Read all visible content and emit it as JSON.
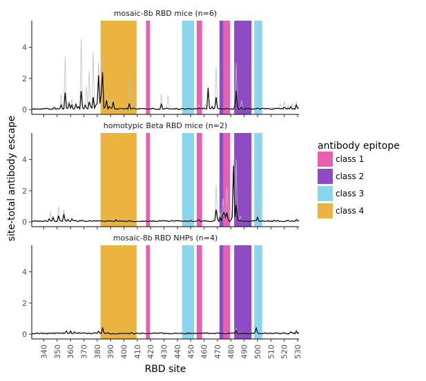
{
  "colors": {
    "class 1": "#e85fb3",
    "class 2": "#8e4bc4",
    "class 3": "#8ad6ef",
    "class 4": "#ebb440",
    "mean_line": "#000000",
    "individual_lines": "#bfbfbf"
  },
  "chart_data": {
    "type": "line",
    "facets": [
      "mosaic-8b RBD mice (n=6)",
      "homotypic Beta RBD mice (n=2)",
      "mosaic-8b RBD NHPs (n=4)"
    ],
    "xlabel": "RBD site",
    "ylabel": "site-total antibody escape",
    "xlim": [
      331,
      531
    ],
    "ylim": [
      -0.3,
      5.7
    ],
    "xticks": [
      340,
      350,
      360,
      370,
      380,
      390,
      400,
      410,
      420,
      430,
      440,
      450,
      460,
      470,
      480,
      490,
      500,
      510,
      520,
      530
    ],
    "yticks": [
      0,
      2,
      4
    ],
    "legend": {
      "title": "antibody epitope",
      "placement": "right",
      "entries": [
        "class 1",
        "class 2",
        "class 3",
        "class 4"
      ]
    },
    "epitope_bands": [
      {
        "class": "class 4",
        "start": 382.5,
        "end": 409.5
      },
      {
        "class": "class 1",
        "start": 416.5,
        "end": 419.5
      },
      {
        "class": "class 3",
        "start": 443.5,
        "end": 452.5
      },
      {
        "class": "class 1",
        "start": 454.5,
        "end": 458.5
      },
      {
        "class": "class 2",
        "start": 471.5,
        "end": 474.5
      },
      {
        "class": "class 1",
        "start": 474.5,
        "end": 479.5
      },
      {
        "class": "class 2",
        "start": 482.5,
        "end": 495.5
      },
      {
        "class": "class 3",
        "start": 497.5,
        "end": 503.5
      }
    ],
    "series": [
      {
        "facet": 0,
        "mean_peaks": [
          [
            342,
            0.1
          ],
          [
            345,
            0.02
          ],
          [
            348,
            0.15
          ],
          [
            351,
            0.05
          ],
          [
            353,
            0.3
          ],
          [
            354,
            0.05
          ],
          [
            356,
            1.1
          ],
          [
            357,
            0.1
          ],
          [
            359,
            0.4
          ],
          [
            360,
            0.1
          ],
          [
            361,
            0.3
          ],
          [
            362,
            0.05
          ],
          [
            364,
            0.35
          ],
          [
            365,
            0.1
          ],
          [
            366,
            0.2
          ],
          [
            367,
            0.05
          ],
          [
            368,
            1.2
          ],
          [
            369,
            0.15
          ],
          [
            370,
            0.05
          ],
          [
            371,
            0.3
          ],
          [
            372,
            0.1
          ],
          [
            374,
            0.5
          ],
          [
            375,
            0.2
          ],
          [
            376,
            0.1
          ],
          [
            377,
            0.8
          ],
          [
            378,
            0.1
          ],
          [
            379,
            0.3
          ],
          [
            380,
            0.4
          ],
          [
            381,
            2.2
          ],
          [
            382,
            0.4
          ],
          [
            383,
            1.0
          ],
          [
            384,
            2.4
          ],
          [
            385,
            0.1
          ],
          [
            386,
            0.15
          ],
          [
            387,
            0.6
          ],
          [
            388,
            0.05
          ],
          [
            389,
            0.2
          ],
          [
            390,
            0.1
          ],
          [
            391,
            0.1
          ],
          [
            392,
            0.5
          ],
          [
            393,
            0.05
          ],
          [
            396,
            0.05
          ],
          [
            402,
            0.1
          ],
          [
            404,
            0.4
          ],
          [
            405,
            0.05
          ],
          [
            407,
            0.1
          ],
          [
            422,
            0.08
          ],
          [
            428,
            0.35
          ],
          [
            429,
            0.05
          ],
          [
            432,
            0.1
          ],
          [
            435,
            0.05
          ],
          [
            452,
            0.05
          ],
          [
            456,
            0.1
          ],
          [
            460,
            0.1
          ],
          [
            461,
            0.05
          ],
          [
            463,
            1.4
          ],
          [
            464,
            0.1
          ],
          [
            466,
            0.2
          ],
          [
            468,
            0.1
          ],
          [
            469,
            0.8
          ],
          [
            470,
            0.1
          ],
          [
            473,
            0.05
          ],
          [
            483,
            0.2
          ],
          [
            484,
            1.2
          ],
          [
            485,
            0.2
          ],
          [
            488,
            0.15
          ],
          [
            490,
            0.02
          ],
          [
            494,
            0.05
          ],
          [
            500,
            0.1
          ],
          [
            520,
            0.15
          ],
          [
            523,
            0.1
          ],
          [
            525,
            0.2
          ],
          [
            529,
            0.3
          ],
          [
            531,
            0.1
          ]
        ],
        "ind_peaks": [
          [
            353,
            1.0
          ],
          [
            356,
            3.4
          ],
          [
            358,
            0.5
          ],
          [
            361,
            0.7
          ],
          [
            364,
            0.4
          ],
          [
            368,
            4.5
          ],
          [
            372,
            1.5
          ],
          [
            374,
            2.5
          ],
          [
            377,
            3.7
          ],
          [
            381,
            3.0
          ],
          [
            382,
            0.3
          ],
          [
            383,
            3.2
          ],
          [
            384,
            2.7
          ],
          [
            387,
            1.1
          ],
          [
            391,
            0.8
          ],
          [
            392,
            0.9
          ],
          [
            404,
            2.1
          ],
          [
            406,
            0.3
          ],
          [
            428,
            1.0
          ],
          [
            433,
            0.9
          ],
          [
            456,
            0.3
          ],
          [
            461,
            0.4
          ],
          [
            463,
            1.3
          ],
          [
            469,
            2.8
          ],
          [
            484,
            3.0
          ],
          [
            488,
            0.6
          ],
          [
            517,
            0.4
          ],
          [
            520,
            0.5
          ],
          [
            523,
            0.3
          ],
          [
            526,
            0.4
          ],
          [
            529,
            0.5
          ]
        ]
      },
      {
        "facet": 1,
        "mean_peaks": [
          [
            344,
            0.2
          ],
          [
            347,
            0.3
          ],
          [
            348,
            0.05
          ],
          [
            351,
            0.4
          ],
          [
            352,
            0.1
          ],
          [
            355,
            0.5
          ],
          [
            356,
            0.1
          ],
          [
            358,
            0.15
          ],
          [
            361,
            0.2
          ],
          [
            364,
            0.1
          ],
          [
            369,
            0.1
          ],
          [
            373,
            0.05
          ],
          [
            378,
            0.1
          ],
          [
            384,
            0.05
          ],
          [
            394,
            0.15
          ],
          [
            396,
            0.05
          ],
          [
            405,
            0.05
          ],
          [
            411,
            0.05
          ],
          [
            424,
            0.05
          ],
          [
            429,
            0.1
          ],
          [
            436,
            0.1
          ],
          [
            444,
            0.05
          ],
          [
            450,
            0.1
          ],
          [
            456,
            0.15
          ],
          [
            462,
            0.05
          ],
          [
            468,
            0.1
          ],
          [
            469,
            0.8
          ],
          [
            470,
            0.2
          ],
          [
            472,
            0.3
          ],
          [
            473,
            0.1
          ],
          [
            474,
            0.5
          ],
          [
            475,
            0.6
          ],
          [
            476,
            0.3
          ],
          [
            477,
            0.6
          ],
          [
            478,
            0.2
          ],
          [
            480,
            0.1
          ],
          [
            481,
            0.3
          ],
          [
            482,
            3.6
          ],
          [
            483,
            0.3
          ],
          [
            484,
            1.1
          ],
          [
            485,
            0.2
          ],
          [
            487,
            0.1
          ],
          [
            490,
            0.05
          ],
          [
            494,
            0.05
          ],
          [
            500,
            0.3
          ],
          [
            501,
            0.05
          ],
          [
            507,
            0.05
          ],
          [
            517,
            0.05
          ],
          [
            523,
            0.1
          ],
          [
            527,
            0.05
          ],
          [
            529,
            0.15
          ],
          [
            531,
            0.1
          ]
        ],
        "ind_peaks": [
          [
            345,
            0.7
          ],
          [
            351,
            1.0
          ],
          [
            355,
            0.8
          ],
          [
            358,
            0.2
          ],
          [
            394,
            0.3
          ],
          [
            398,
            0.2
          ],
          [
            446,
            0.3
          ],
          [
            450,
            0.3
          ],
          [
            469,
            2.4
          ],
          [
            470,
            0.6
          ],
          [
            472,
            0.6
          ],
          [
            474,
            1.5
          ],
          [
            475,
            0.4
          ],
          [
            477,
            2.2
          ],
          [
            478,
            1.0
          ],
          [
            481,
            0.8
          ],
          [
            482,
            4.0
          ],
          [
            483,
            0.9
          ],
          [
            484,
            4.0
          ],
          [
            487,
            0.4
          ],
          [
            500,
            1.3
          ],
          [
            529,
            0.2
          ]
        ]
      },
      {
        "facet": 2,
        "mean_peaks": [
          [
            341,
            0.05
          ],
          [
            345,
            0.05
          ],
          [
            349,
            0.08
          ],
          [
            354,
            0.1
          ],
          [
            356,
            0.1
          ],
          [
            357,
            0.2
          ],
          [
            358,
            0.05
          ],
          [
            360,
            0.2
          ],
          [
            363,
            0.15
          ],
          [
            366,
            0.1
          ],
          [
            369,
            0.1
          ],
          [
            372,
            0.05
          ],
          [
            378,
            0.1
          ],
          [
            381,
            0.2
          ],
          [
            384,
            0.4
          ],
          [
            385,
            0.1
          ],
          [
            388,
            0.1
          ],
          [
            392,
            0.05
          ],
          [
            398,
            0.05
          ],
          [
            402,
            0.05
          ],
          [
            406,
            0.1
          ],
          [
            428,
            0.1
          ],
          [
            432,
            0.05
          ],
          [
            441,
            0.05
          ],
          [
            444,
            0.05
          ],
          [
            448,
            0.1
          ],
          [
            452,
            0.05
          ],
          [
            462,
            0.1
          ],
          [
            466,
            0.05
          ],
          [
            471,
            0.08
          ],
          [
            474,
            0.05
          ],
          [
            478,
            0.1
          ],
          [
            484,
            0.25
          ],
          [
            485,
            0.05
          ],
          [
            489,
            0.1
          ],
          [
            493,
            0.05
          ],
          [
            498,
            0.1
          ],
          [
            499,
            0.4
          ],
          [
            500,
            0.1
          ],
          [
            502,
            0.05
          ],
          [
            520,
            0.1
          ],
          [
            525,
            0.15
          ],
          [
            529,
            0.2
          ],
          [
            531,
            0.1
          ]
        ],
        "ind_peaks": [
          [
            357,
            0.3
          ],
          [
            360,
            0.3
          ],
          [
            384,
            0.5
          ],
          [
            399,
            0.2
          ],
          [
            406,
            0.2
          ],
          [
            448,
            0.2
          ],
          [
            484,
            0.4
          ],
          [
            499,
            0.5
          ],
          [
            525,
            0.2
          ],
          [
            529,
            0.3
          ]
        ]
      }
    ]
  }
}
